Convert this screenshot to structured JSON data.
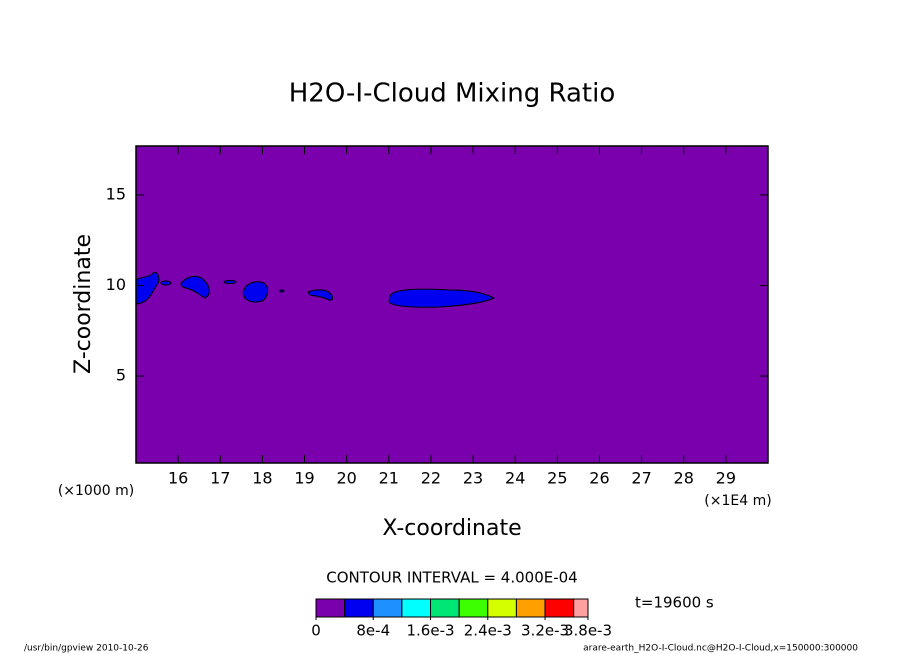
{
  "chart_data": {
    "type": "contour",
    "title": "H2O-I-Cloud Mixing Ratio",
    "xlabel": "X-coordinate",
    "ylabel": "Z-coordinate",
    "x_unit_label": "(×1E4 m)",
    "y_unit_label": "(×1000 m)",
    "xlim": [
      15,
      30
    ],
    "xticks": [
      16,
      17,
      18,
      19,
      20,
      21,
      22,
      23,
      24,
      25,
      26,
      27,
      28,
      29
    ],
    "ylim": [
      0.2,
      17.7
    ],
    "yticks": [
      5,
      10,
      15
    ],
    "contour_interval_label": "CONTOUR INTERVAL = 4.000E-04",
    "time_label": "t=19600 s",
    "levels": [
      0,
      0.0004,
      0.0008,
      0.0012,
      0.0016,
      0.002,
      0.0024,
      0.0028,
      0.0032,
      0.0036,
      0.0038
    ],
    "colors": [
      "#7b00ad",
      "#0000f0",
      "#1e90ff",
      "#00ffff",
      "#00e676",
      "#3cff00",
      "#d4ff00",
      "#ffa000",
      "#ff0000",
      "#ffa0a0"
    ],
    "colorbar_ticks": [
      0,
      {
        "value": 0.0008,
        "label": "8e-4"
      },
      {
        "value": 0.0016,
        "label": "1.6e-3"
      },
      {
        "value": 0.0024,
        "label": "2.4e-3"
      },
      {
        "value": 0.0032,
        "label": "3.2e-3"
      },
      {
        "value": 0.0038,
        "label": "3.8e-3"
      }
    ],
    "footer_left": "/usr/bin/gpview  2010-10-26",
    "footer_right": "arare-earth_H2O-I-Cloud.nc@H2O-I-Cloud,x=150000:300000"
  }
}
